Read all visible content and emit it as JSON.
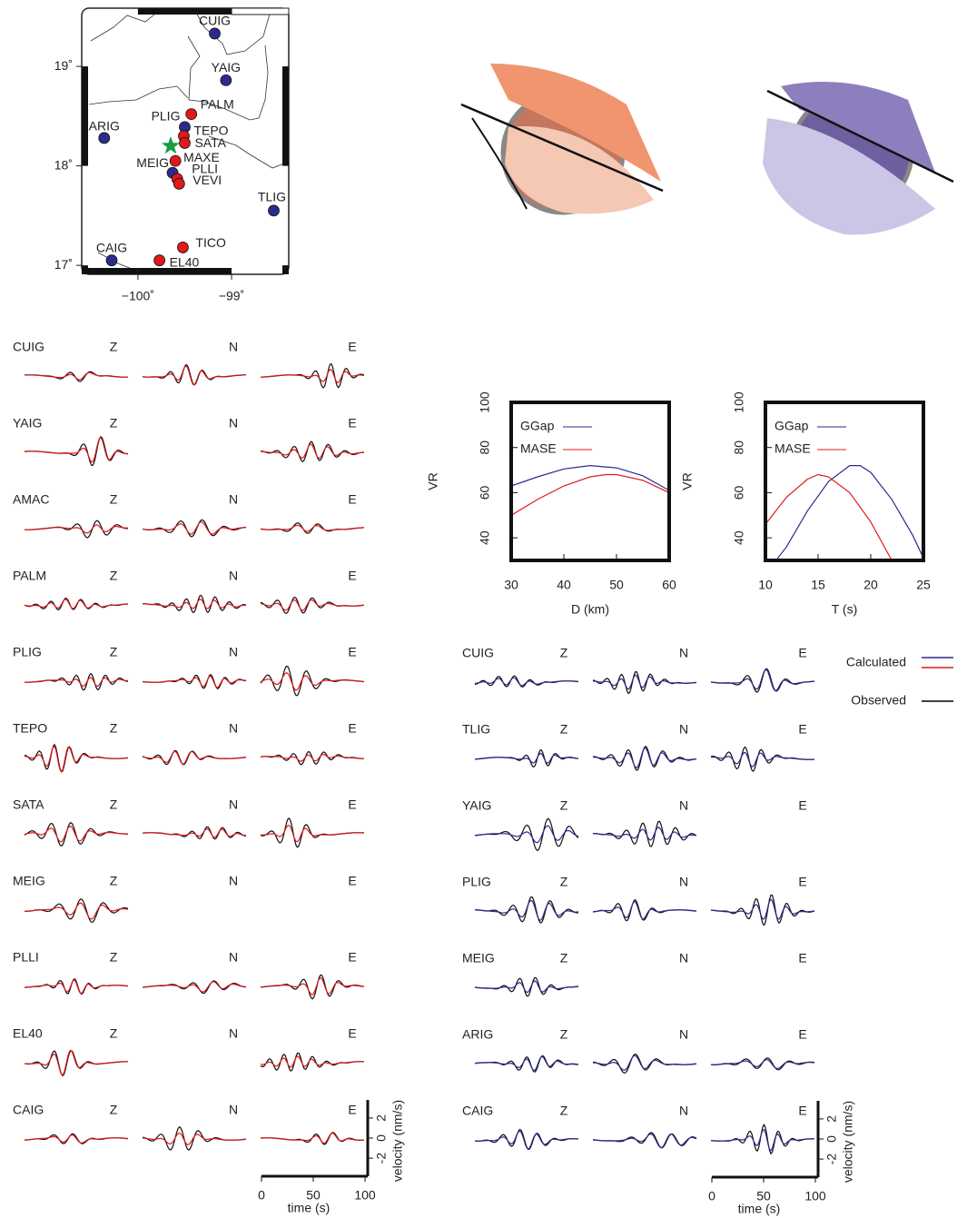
{
  "chart_data": [
    {
      "type": "map",
      "xlim": [
        -100.6,
        -98.39
      ],
      "ylim": [
        16.91,
        19.585
      ],
      "xticks": [
        {
          "value": -100,
          "label": "−100˚"
        },
        {
          "value": -99,
          "label": "−99˚"
        }
      ],
      "yticks": [
        {
          "value": 17,
          "label": "17˚"
        },
        {
          "value": 18,
          "label": "18˚"
        },
        {
          "value": 19,
          "label": "19˚"
        }
      ],
      "stations": {
        "names": [
          "CUIG",
          "YAIG",
          "PALM",
          "PLIG",
          "ARIG",
          "TEPO",
          "SATA",
          "MAXE",
          "MEIG",
          "PLLI",
          "VEVI",
          "TLIG",
          "TICO",
          "EL40",
          "CAIG"
        ],
        "lon": [
          -99.18,
          -99.06,
          -99.43,
          -99.5,
          -100.36,
          -99.51,
          -99.5,
          -99.6,
          -99.63,
          -99.58,
          -99.56,
          -98.55,
          -99.52,
          -99.77,
          -100.28
        ],
        "lat": [
          19.33,
          18.86,
          18.52,
          18.39,
          18.28,
          18.3,
          18.23,
          18.05,
          17.93,
          17.87,
          17.82,
          17.55,
          17.18,
          17.05,
          17.05
        ],
        "colors": [
          "#2b2a8e",
          "#2b2a8e",
          "#e0191b",
          "#2b2a8e",
          "#2b2a8e",
          "#e0191b",
          "#e0191b",
          "#e0191b",
          "#2b2a8e",
          "#e0191b",
          "#e0191b",
          "#2b2a8e",
          "#e0191b",
          "#e0191b",
          "#2b2a8e"
        ]
      },
      "epicenter": {
        "lon": -99.65,
        "lat": 18.2,
        "color": "#1e9a3c"
      }
    },
    {
      "type": "line",
      "xlabel": "D (km)",
      "ylabel": "VR",
      "xlim": [
        30,
        60
      ],
      "xticks": [
        30,
        40,
        50,
        60
      ],
      "ylim": [
        30,
        100
      ],
      "yticks": [
        40,
        60,
        80,
        100
      ],
      "series": [
        {
          "name": "GGap",
          "color": "#2b2a8e",
          "x": [
            30,
            35,
            40,
            45,
            50,
            55,
            60
          ],
          "values": [
            63,
            67,
            70.5,
            72,
            71,
            67.5,
            61
          ]
        },
        {
          "name": "MASE",
          "color": "#e0191b",
          "x": [
            30,
            35,
            40,
            45,
            48,
            50,
            55,
            60
          ],
          "values": [
            50,
            57,
            63,
            67,
            68,
            68,
            65.5,
            60
          ]
        }
      ]
    },
    {
      "type": "line",
      "xlabel": "T (s)",
      "ylabel": "VR",
      "xlim": [
        10,
        25
      ],
      "xticks": [
        10,
        15,
        20,
        25
      ],
      "ylim": [
        30,
        100
      ],
      "yticks": [
        40,
        60,
        80,
        100
      ],
      "series": [
        {
          "name": "GGap",
          "color": "#2b2a8e",
          "x": [
            11,
            12,
            14,
            16,
            18,
            19,
            20,
            22,
            24,
            25
          ],
          "values": [
            30,
            36,
            52,
            65,
            72,
            72,
            69,
            57,
            41,
            31
          ]
        },
        {
          "name": "MASE",
          "color": "#e0191b",
          "x": [
            10,
            12,
            14,
            15,
            16,
            18,
            20,
            22
          ],
          "values": [
            46,
            58,
            66,
            68,
            67,
            60,
            47,
            30
          ]
        }
      ]
    },
    {
      "type": "waveforms",
      "color": "#e0191b",
      "stations": [
        "CUIG",
        "YAIG",
        "AMAC",
        "PALM",
        "PLIG",
        "TEPO",
        "SATA",
        "MEIG",
        "PLLI",
        "EL40",
        "CAIG"
      ],
      "components": [
        "Z",
        "N",
        "E"
      ],
      "xlabel": "time (s)",
      "ylabel": "velocity (nm/s)",
      "xlim": [
        0,
        100
      ],
      "xticks": [
        0,
        50,
        100
      ],
      "ylim": [
        -3.8,
        3.8
      ],
      "yticks": [
        -2,
        0,
        2
      ]
    },
    {
      "type": "waveforms",
      "color": "#2b2a8e",
      "stations": [
        "CUIG",
        "TLIG",
        "YAIG",
        "PLIG",
        "MEIG",
        "ARIG",
        "CAIG"
      ],
      "components": [
        "Z",
        "N",
        "E"
      ],
      "xlabel": "time (s)",
      "ylabel": "velocity (nm/s)",
      "xlim": [
        0,
        100
      ],
      "xticks": [
        0,
        50,
        100
      ],
      "ylim": [
        -3.8,
        3.8
      ],
      "yticks": [
        -2,
        0,
        2
      ],
      "legend": [
        {
          "name": "Calculated",
          "colors": [
            "#2b2a8e",
            "#e0191b"
          ]
        },
        {
          "name": "Observed",
          "color": "#000000"
        }
      ]
    }
  ]
}
